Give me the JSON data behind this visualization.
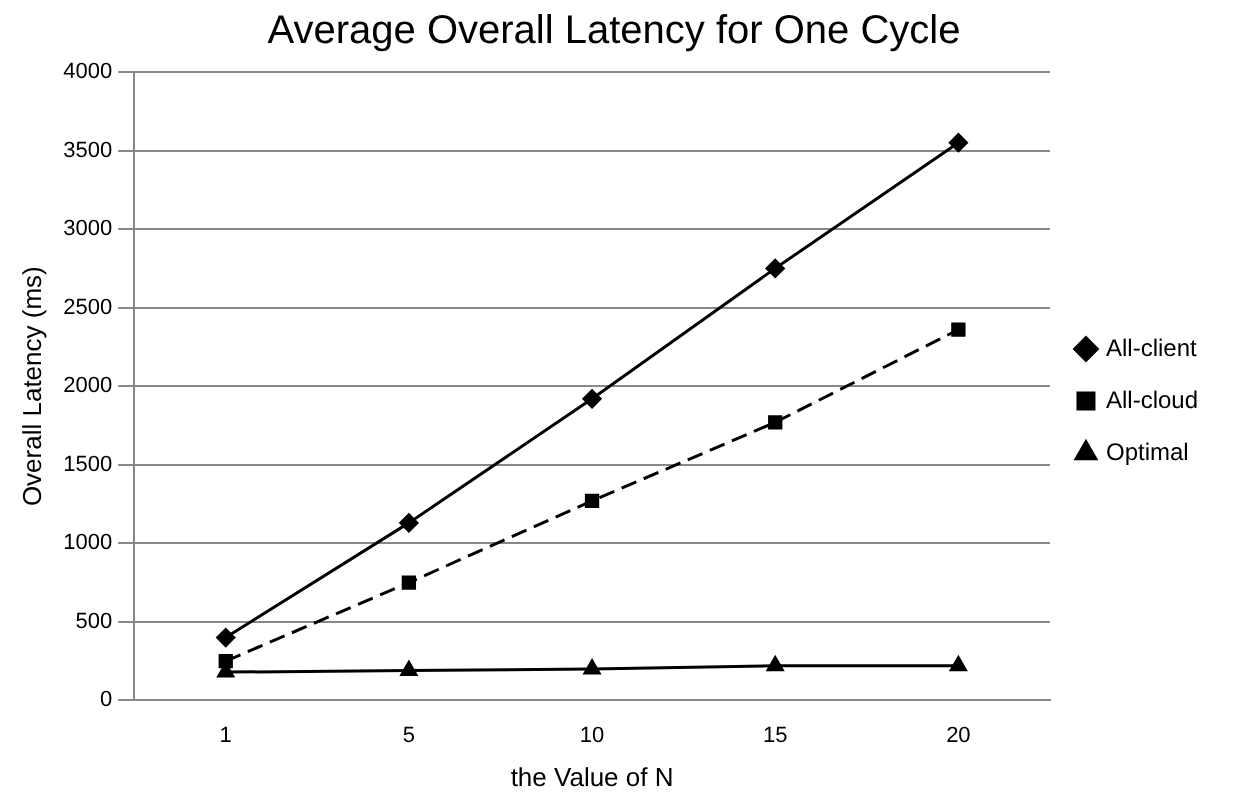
{
  "chart_data": {
    "type": "line",
    "title": "Average Overall Latency for One Cycle",
    "xlabel": "the Value of N",
    "ylabel": "Overall Latency (ms)",
    "categories": [
      "1",
      "5",
      "10",
      "15",
      "20"
    ],
    "series": [
      {
        "name": "All-client",
        "color": "#000000",
        "marker": "diamond",
        "line_style": "solid",
        "values": [
          400,
          1130,
          1920,
          2750,
          3550
        ]
      },
      {
        "name": "All-cloud",
        "color": "#000000",
        "marker": "square",
        "line_style": "dashed",
        "values": [
          250,
          750,
          1270,
          1770,
          2360
        ]
      },
      {
        "name": "Optimal",
        "color": "#000000",
        "marker": "triangle",
        "line_style": "solid",
        "values": [
          180,
          190,
          200,
          220,
          220
        ]
      }
    ],
    "ylim": [
      0,
      4000
    ],
    "yticks": [
      0,
      500,
      1000,
      1500,
      2000,
      2500,
      3000,
      3500,
      4000
    ],
    "grid": "y",
    "legend": "right"
  }
}
